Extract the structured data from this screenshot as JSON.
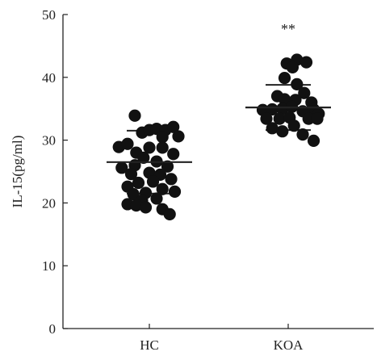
{
  "chart_data": {
    "type": "scatter",
    "title": "",
    "xlabel": "",
    "ylabel": "IL-15(pg/ml)",
    "categories": [
      "HC",
      "KOA"
    ],
    "ylim": [
      0,
      50
    ],
    "yticks": [
      "0",
      "10",
      "20",
      "30",
      "40",
      "50"
    ],
    "grid": false,
    "annotations": [
      {
        "category": "KOA",
        "text": "**"
      }
    ],
    "series": [
      {
        "category": "HC",
        "mean": 26.5,
        "sd_upper": 31.5,
        "sd_lower": 21.5,
        "points": [
          {
            "x_offset": -0.42,
            "y": 28.9
          },
          {
            "x_offset": -0.3,
            "y": 29.4
          },
          {
            "x_offset": -0.2,
            "y": 33.9
          },
          {
            "x_offset": -0.1,
            "y": 31.2
          },
          {
            "x_offset": 0.0,
            "y": 31.6
          },
          {
            "x_offset": 0.1,
            "y": 31.8
          },
          {
            "x_offset": 0.22,
            "y": 31.6
          },
          {
            "x_offset": 0.33,
            "y": 32.1
          },
          {
            "x_offset": 0.18,
            "y": 30.5
          },
          {
            "x_offset": 0.4,
            "y": 30.6
          },
          {
            "x_offset": -0.18,
            "y": 28.0
          },
          {
            "x_offset": 0.0,
            "y": 28.8
          },
          {
            "x_offset": 0.18,
            "y": 28.8
          },
          {
            "x_offset": 0.33,
            "y": 27.8
          },
          {
            "x_offset": -0.08,
            "y": 27.2
          },
          {
            "x_offset": 0.1,
            "y": 26.6
          },
          {
            "x_offset": 0.25,
            "y": 25.8
          },
          {
            "x_offset": -0.2,
            "y": 26.0
          },
          {
            "x_offset": -0.38,
            "y": 25.6
          },
          {
            "x_offset": 0.0,
            "y": 24.8
          },
          {
            "x_offset": 0.15,
            "y": 24.5
          },
          {
            "x_offset": -0.25,
            "y": 24.6
          },
          {
            "x_offset": 0.05,
            "y": 23.4
          },
          {
            "x_offset": 0.3,
            "y": 23.8
          },
          {
            "x_offset": -0.15,
            "y": 23.2
          },
          {
            "x_offset": -0.3,
            "y": 22.6
          },
          {
            "x_offset": 0.18,
            "y": 22.2
          },
          {
            "x_offset": 0.35,
            "y": 21.8
          },
          {
            "x_offset": -0.05,
            "y": 21.6
          },
          {
            "x_offset": -0.22,
            "y": 21.4
          },
          {
            "x_offset": 0.1,
            "y": 20.7
          },
          {
            "x_offset": -0.1,
            "y": 20.4
          },
          {
            "x_offset": -0.3,
            "y": 19.8
          },
          {
            "x_offset": -0.18,
            "y": 19.6
          },
          {
            "x_offset": -0.05,
            "y": 19.3
          },
          {
            "x_offset": 0.18,
            "y": 19.0
          },
          {
            "x_offset": 0.28,
            "y": 18.2
          }
        ]
      },
      {
        "category": "KOA",
        "mean": 35.2,
        "sd_upper": 38.8,
        "sd_lower": 31.6,
        "points": [
          {
            "x_offset": -0.02,
            "y": 42.2
          },
          {
            "x_offset": 0.12,
            "y": 42.8
          },
          {
            "x_offset": 0.25,
            "y": 42.4
          },
          {
            "x_offset": 0.06,
            "y": 41.6
          },
          {
            "x_offset": -0.05,
            "y": 39.9
          },
          {
            "x_offset": 0.12,
            "y": 38.9
          },
          {
            "x_offset": 0.22,
            "y": 37.5
          },
          {
            "x_offset": -0.15,
            "y": 37.0
          },
          {
            "x_offset": -0.05,
            "y": 36.5
          },
          {
            "x_offset": 0.1,
            "y": 36.4
          },
          {
            "x_offset": 0.32,
            "y": 36.0
          },
          {
            "x_offset": -0.35,
            "y": 34.8
          },
          {
            "x_offset": -0.22,
            "y": 34.9
          },
          {
            "x_offset": -0.08,
            "y": 35.0
          },
          {
            "x_offset": 0.05,
            "y": 35.3
          },
          {
            "x_offset": 0.2,
            "y": 34.6
          },
          {
            "x_offset": 0.35,
            "y": 34.9
          },
          {
            "x_offset": 0.42,
            "y": 34.2
          },
          {
            "x_offset": -0.3,
            "y": 33.4
          },
          {
            "x_offset": -0.12,
            "y": 33.4
          },
          {
            "x_offset": 0.02,
            "y": 33.6
          },
          {
            "x_offset": 0.28,
            "y": 33.4
          },
          {
            "x_offset": 0.4,
            "y": 33.4
          },
          {
            "x_offset": -0.22,
            "y": 31.9
          },
          {
            "x_offset": -0.08,
            "y": 31.4
          },
          {
            "x_offset": 0.08,
            "y": 32.3
          },
          {
            "x_offset": 0.2,
            "y": 30.9
          },
          {
            "x_offset": 0.35,
            "y": 29.9
          }
        ]
      }
    ]
  }
}
